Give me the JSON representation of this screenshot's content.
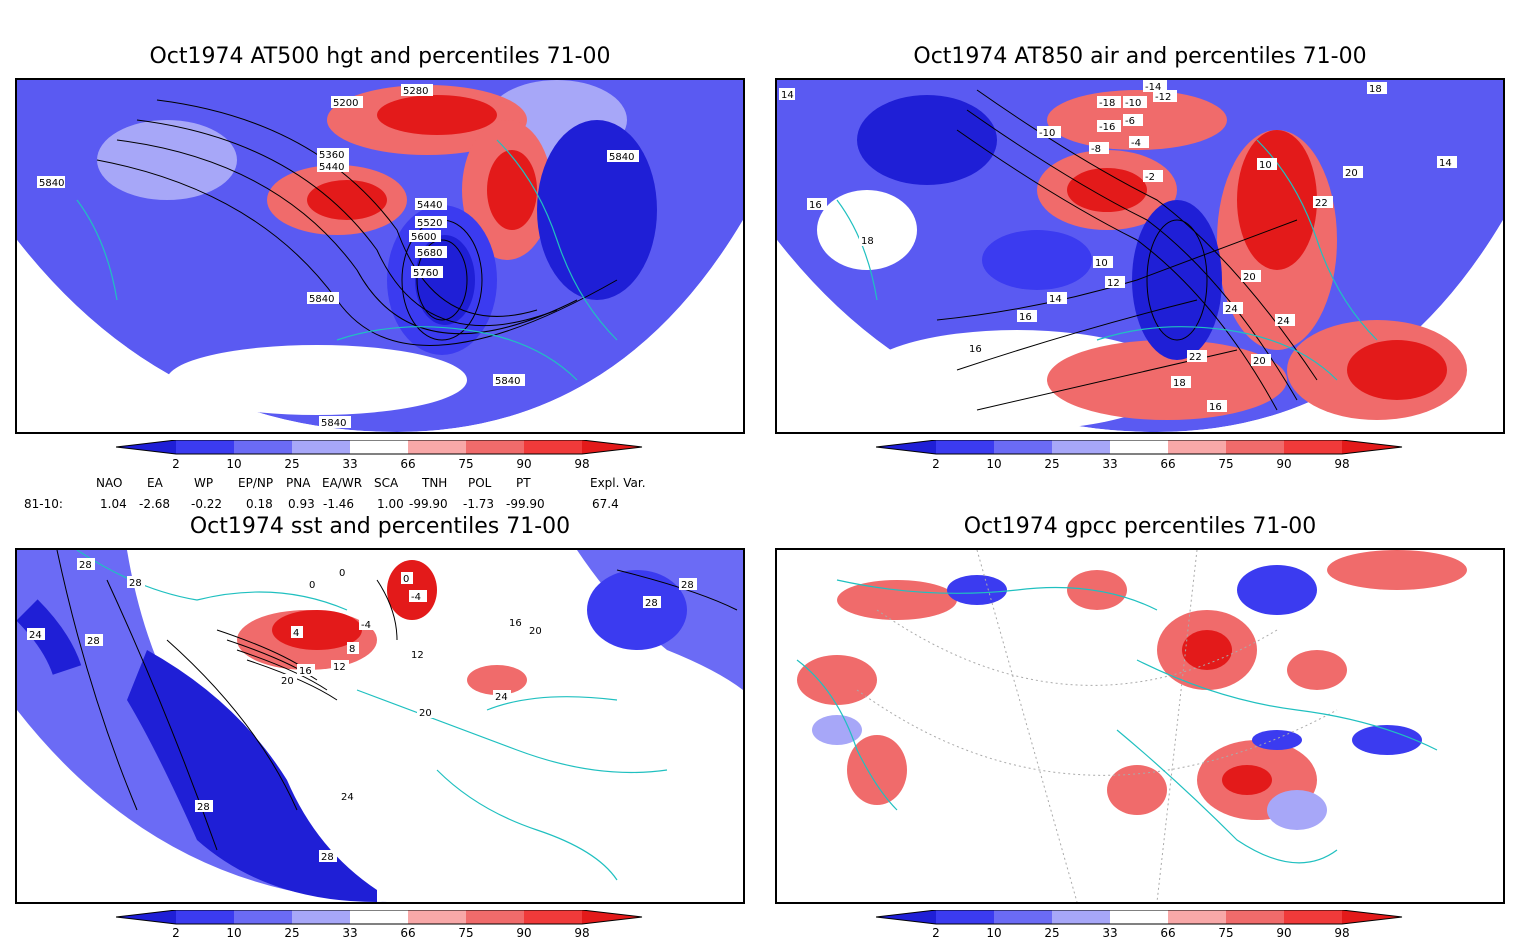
{
  "panels": [
    {
      "title": "Oct1974 AT500 hgt and percentiles 71-00",
      "contour_labels": [
        "5200",
        "5280",
        "5360",
        "5440",
        "5440",
        "5520",
        "5600",
        "5680",
        "5760",
        "5840",
        "5840",
        "5840",
        "5840",
        "5840"
      ]
    },
    {
      "title": "Oct1974 AT850 air and percentiles 71-00",
      "contour_labels": [
        "14",
        "-14",
        "-12",
        "-10",
        "-18",
        "-16",
        "-6",
        "-8",
        "-4",
        "-10",
        "-2",
        "10",
        "18",
        "14",
        "20",
        "22",
        "16",
        "18",
        "12",
        "10",
        "14",
        "16",
        "20",
        "24",
        "24",
        "22",
        "20",
        "18",
        "16",
        "16"
      ]
    },
    {
      "title": "Oct1974 sst and percentiles 71-00",
      "contour_labels": [
        "28",
        "28",
        "24",
        "28",
        "0",
        "0",
        "0",
        "-4",
        "4",
        "-4",
        "8",
        "12",
        "16",
        "20",
        "12",
        "16",
        "20",
        "24",
        "20",
        "28",
        "24",
        "28",
        "28",
        "28"
      ]
    },
    {
      "title": "Oct1974 gpcc percentiles 71-00",
      "contour_labels": []
    }
  ],
  "colorbar": {
    "ticks": [
      "2",
      "10",
      "25",
      "33",
      "66",
      "75",
      "90",
      "98"
    ],
    "colors": [
      "#1f1fd6",
      "#3b3bf0",
      "#6b6bf5",
      "#a7a7f8",
      "#ffffff",
      "#f8a8a8",
      "#f06b6b",
      "#f03a3a",
      "#e31a1a"
    ]
  },
  "indices": {
    "headers": [
      "NAO",
      "EA",
      "WP",
      "EP/NP",
      "PNA",
      "EA/WR",
      "SCA",
      "TNH",
      "POL",
      "PT",
      "Expl. Var."
    ],
    "row_label": "81-10:",
    "values": [
      "1.04",
      "-2.68",
      "-0.22",
      "0.18",
      "0.93",
      "-1.46",
      "1.00",
      "-99.90",
      "-1.73",
      "-99.90",
      "67.4"
    ]
  }
}
